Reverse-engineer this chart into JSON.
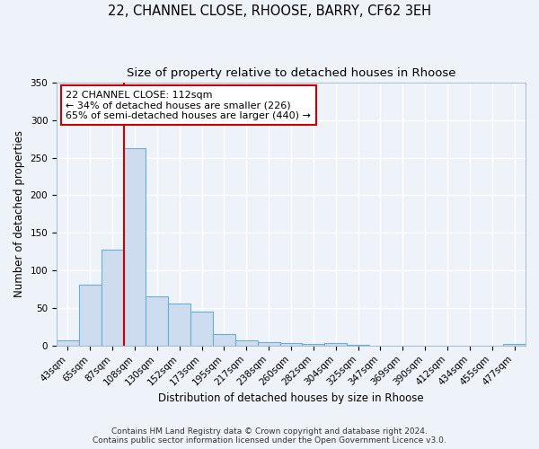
{
  "title": "22, CHANNEL CLOSE, RHOOSE, BARRY, CF62 3EH",
  "subtitle": "Size of property relative to detached houses in Rhoose",
  "xlabel": "Distribution of detached houses by size in Rhoose",
  "ylabel": "Number of detached properties",
  "bar_labels": [
    "43sqm",
    "65sqm",
    "87sqm",
    "108sqm",
    "130sqm",
    "152sqm",
    "173sqm",
    "195sqm",
    "217sqm",
    "238sqm",
    "260sqm",
    "282sqm",
    "304sqm",
    "325sqm",
    "347sqm",
    "369sqm",
    "390sqm",
    "412sqm",
    "434sqm",
    "455sqm",
    "477sqm"
  ],
  "bar_values": [
    7,
    81,
    128,
    263,
    65,
    56,
    45,
    15,
    7,
    5,
    3,
    2,
    4,
    1,
    0,
    0,
    0,
    0,
    0,
    0,
    2
  ],
  "bar_color": "#cddcee",
  "bar_edge_color": "#6baed6",
  "vline_color": "#cc0000",
  "vline_bar_index": 3,
  "annotation_title": "22 CHANNEL CLOSE: 112sqm",
  "annotation_line1": "← 34% of detached houses are smaller (226)",
  "annotation_line2": "65% of semi-detached houses are larger (440) →",
  "annotation_box_color": "#cc0000",
  "ylim": [
    0,
    350
  ],
  "yticks": [
    0,
    50,
    100,
    150,
    200,
    250,
    300,
    350
  ],
  "footer1": "Contains HM Land Registry data © Crown copyright and database right 2024.",
  "footer2": "Contains public sector information licensed under the Open Government Licence v3.0.",
  "bg_color": "#eef2f9",
  "grid_color": "#ffffff",
  "title_fontsize": 10.5,
  "subtitle_fontsize": 9.5,
  "axis_label_fontsize": 8.5,
  "tick_fontsize": 7.5,
  "annotation_fontsize": 8,
  "footer_fontsize": 6.5
}
